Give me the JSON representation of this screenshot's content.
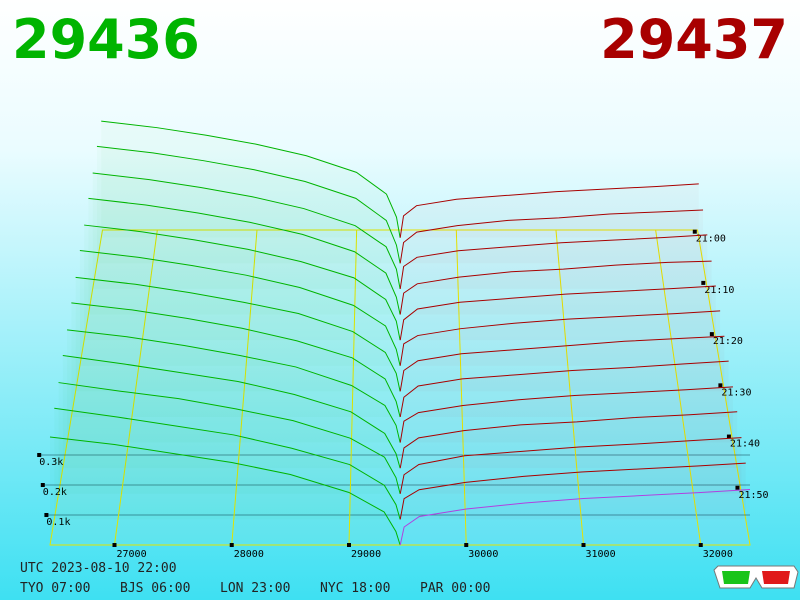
{
  "chart_data": {
    "type": "depth3d",
    "best_bid": 29436,
    "best_ask": 29437,
    "bid_color": "#00b400",
    "ask_color": "#a80000",
    "footer": {
      "utc": "UTC 2023-08-10 22:00",
      "cities": [
        "TYO 07:00",
        "BJS 06:00",
        "LON 23:00",
        "NYC 18:00",
        "PAR 00:00"
      ]
    },
    "xlim": [
      26450,
      32420
    ],
    "xticks": [
      27000,
      28000,
      29000,
      30000,
      31000,
      32000
    ],
    "ylim": [
      0,
      400
    ],
    "yticks": [
      {
        "value": 100,
        "label": "0.1k"
      },
      {
        "value": 200,
        "label": "0.2k"
      },
      {
        "value": 300,
        "label": "0.3k"
      }
    ],
    "zlim": [
      -61.5,
      0
    ],
    "zticks": [
      {
        "value": -60,
        "label": "21:00"
      },
      {
        "value": -50,
        "label": "21:10"
      },
      {
        "value": -40,
        "label": "21:20"
      },
      {
        "value": -30,
        "label": "21:30"
      },
      {
        "value": -20,
        "label": "21:40"
      },
      {
        "value": -10,
        "label": "21:50"
      }
    ],
    "bid_x": [
      29436,
      29400,
      29300,
      29000,
      28500,
      28000,
      27500,
      27000,
      26450
    ],
    "ask_x": [
      29437,
      29470,
      29600,
      30000,
      30500,
      31000,
      31500,
      32000,
      32420
    ],
    "bids": [
      {
        "z": -60,
        "values": [
          0,
          80,
          170,
          255,
          320,
          365,
          400,
          430,
          455
        ]
      },
      {
        "z": -55,
        "values": [
          0,
          70,
          165,
          250,
          315,
          360,
          395,
          425,
          450
        ]
      },
      {
        "z": -50,
        "values": [
          0,
          75,
          160,
          240,
          305,
          350,
          385,
          415,
          440
        ]
      },
      {
        "z": -45,
        "values": [
          0,
          65,
          155,
          235,
          300,
          345,
          380,
          410,
          435
        ]
      },
      {
        "z": -40,
        "values": [
          0,
          70,
          150,
          230,
          290,
          335,
          370,
          400,
          425
        ]
      },
      {
        "z": -35,
        "values": [
          0,
          60,
          145,
          220,
          285,
          330,
          365,
          395,
          420
        ]
      },
      {
        "z": -30,
        "values": [
          0,
          65,
          140,
          215,
          280,
          320,
          355,
          385,
          410
        ]
      },
      {
        "z": -25,
        "values": [
          0,
          55,
          135,
          210,
          270,
          315,
          350,
          380,
          405
        ]
      },
      {
        "z": -20,
        "values": [
          0,
          60,
          130,
          200,
          265,
          305,
          340,
          370,
          395
        ]
      },
      {
        "z": -15,
        "values": [
          0,
          50,
          120,
          195,
          255,
          300,
          330,
          360,
          390
        ]
      },
      {
        "z": -10,
        "values": [
          0,
          55,
          125,
          190,
          250,
          290,
          325,
          350,
          380
        ]
      },
      {
        "z": -5,
        "values": [
          0,
          50,
          115,
          185,
          240,
          285,
          315,
          345,
          375
        ]
      },
      {
        "z": 0,
        "values": [
          0,
          45,
          110,
          175,
          235,
          275,
          305,
          335,
          360
        ]
      }
    ],
    "asks": [
      {
        "z": -60,
        "color": "#a80000",
        "values": [
          0,
          85,
          125,
          150,
          165,
          180,
          190,
          200,
          210
        ]
      },
      {
        "z": -55,
        "color": "#a80000",
        "values": [
          0,
          80,
          120,
          145,
          165,
          175,
          190,
          198,
          205
        ]
      },
      {
        "z": -50,
        "color": "#a80000",
        "values": [
          0,
          85,
          120,
          145,
          160,
          175,
          185,
          195,
          205
        ]
      },
      {
        "z": -45,
        "color": "#a80000",
        "values": [
          0,
          80,
          115,
          140,
          160,
          170,
          185,
          195,
          200
        ]
      },
      {
        "z": -40,
        "color": "#a80000",
        "values": [
          0,
          75,
          115,
          140,
          155,
          170,
          180,
          190,
          200
        ]
      },
      {
        "z": -35,
        "color": "#a80000",
        "values": [
          0,
          80,
          110,
          135,
          155,
          170,
          180,
          190,
          200
        ]
      },
      {
        "z": -30,
        "color": "#a80000",
        "values": [
          0,
          75,
          110,
          135,
          150,
          165,
          180,
          190,
          198
        ]
      },
      {
        "z": -25,
        "color": "#a80000",
        "values": [
          0,
          70,
          110,
          135,
          150,
          165,
          175,
          188,
          198
        ]
      },
      {
        "z": -20,
        "color": "#a80000",
        "values": [
          0,
          75,
          105,
          130,
          150,
          165,
          175,
          185,
          195
        ]
      },
      {
        "z": -15,
        "color": "#a80000",
        "values": [
          0,
          70,
          105,
          130,
          150,
          160,
          175,
          185,
          195
        ]
      },
      {
        "z": -10,
        "color": "#a80000",
        "values": [
          0,
          65,
          100,
          130,
          145,
          160,
          170,
          182,
          192
        ]
      },
      {
        "z": -5,
        "color": "#a80000",
        "values": [
          0,
          70,
          100,
          125,
          145,
          160,
          170,
          180,
          190
        ]
      },
      {
        "z": 0,
        "color": "#b040e0",
        "values": [
          0,
          60,
          95,
          120,
          140,
          155,
          165,
          175,
          185
        ]
      }
    ]
  }
}
